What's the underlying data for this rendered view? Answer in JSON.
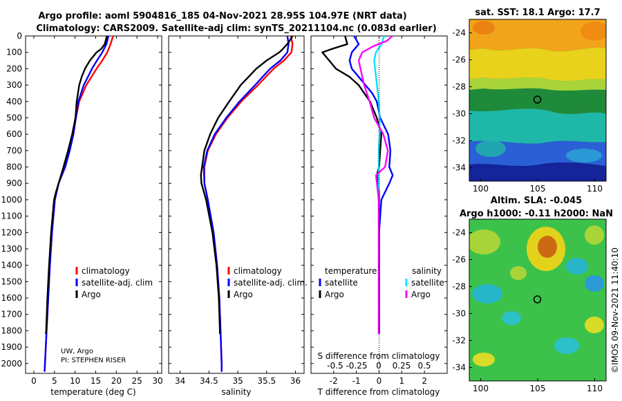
{
  "title_line1": "Argo profile: aoml 5904816_185 04-Nov-2021 28.95S 104.97E (NRT data)",
  "title_line2": "Climatology: CARS2009. Satellite-adj clim: synTS_20211104.nc (0.083d earlier)",
  "credit_line1": "UW, Argo",
  "credit_line2": "PI: STEPHEN RISER",
  "watermark": "©IMOS 09-Nov-2021 11:40:10",
  "colors": {
    "climatology": "#ff0000",
    "satellite": "#0000ff",
    "argo": "#000000",
    "argo_s": "#ff00ff",
    "sat_s": "#00e5ff"
  },
  "chart_data": [
    {
      "type": "line",
      "name": "temperature-profile",
      "xlabel": "temperature (deg C)",
      "ylabel": "",
      "xlim": [
        -2,
        31
      ],
      "ylim": [
        2060,
        0
      ],
      "xticks": [
        0,
        5,
        10,
        15,
        20,
        25,
        30
      ],
      "yticks": [
        0,
        100,
        200,
        300,
        400,
        500,
        600,
        700,
        800,
        900,
        1000,
        1100,
        1200,
        1300,
        1400,
        1500,
        1600,
        1700,
        1800,
        1900,
        2000
      ],
      "legend": [
        "climatology",
        "satellite-adj. clim",
        "Argo"
      ],
      "series": [
        {
          "name": "climatology",
          "depth": [
            0,
            50,
            100,
            150,
            200,
            300,
            400,
            500,
            600,
            700,
            800,
            900,
            1000,
            1200,
            1400,
            1600,
            1800,
            2000,
            2050
          ],
          "values": [
            19.2,
            18.6,
            17.8,
            16.6,
            15.2,
            12.7,
            11.0,
            10.2,
            9.6,
            8.7,
            7.6,
            6.0,
            5.1,
            4.4,
            3.9,
            3.5,
            3.1,
            2.7,
            2.6
          ]
        },
        {
          "name": "satellite-adj. clim",
          "depth": [
            0,
            50,
            100,
            150,
            200,
            300,
            400,
            500,
            600,
            700,
            800,
            900,
            1000,
            1200,
            1400,
            1600,
            1800,
            2000,
            2050
          ],
          "values": [
            18.1,
            17.6,
            16.6,
            15.3,
            14.1,
            12.1,
            10.8,
            10.2,
            9.6,
            8.7,
            7.6,
            6.0,
            5.1,
            4.4,
            3.9,
            3.5,
            3.1,
            2.7,
            2.6
          ]
        },
        {
          "name": "Argo",
          "depth": [
            0,
            50,
            80,
            100,
            150,
            200,
            250,
            300,
            400,
            500,
            600,
            700,
            800,
            900,
            950,
            1000,
            1200,
            1400,
            1600,
            1800,
            1820
          ],
          "values": [
            17.7,
            17.2,
            16.3,
            15.2,
            13.6,
            12.4,
            11.6,
            11.0,
            10.4,
            10.1,
            9.3,
            8.3,
            7.2,
            6.0,
            5.4,
            4.9,
            4.2,
            3.7,
            3.3,
            3.0,
            2.9
          ]
        }
      ]
    },
    {
      "type": "line",
      "name": "salinity-profile",
      "xlabel": "salinity",
      "ylabel": "",
      "xlim": [
        33.8,
        36.15
      ],
      "ylim": [
        2060,
        0
      ],
      "xticks": [
        34,
        34.5,
        35,
        35.5,
        36
      ],
      "legend": [
        "climatology",
        "satellite-adj. clim.",
        "Argo"
      ],
      "series": [
        {
          "name": "climatology",
          "depth": [
            0,
            50,
            100,
            150,
            200,
            300,
            400,
            500,
            600,
            700,
            800,
            900,
            1000,
            1200,
            1400,
            1600,
            1800,
            2000,
            2050
          ],
          "values": [
            35.92,
            35.95,
            35.93,
            35.8,
            35.62,
            35.35,
            35.06,
            34.82,
            34.62,
            34.48,
            34.42,
            34.42,
            34.48,
            34.58,
            34.64,
            34.68,
            34.7,
            34.72,
            34.72
          ]
        },
        {
          "name": "satellite-adj. clim.",
          "depth": [
            0,
            50,
            100,
            150,
            200,
            300,
            400,
            500,
            600,
            700,
            800,
            900,
            1000,
            1200,
            1400,
            1600,
            1800,
            2000,
            2050
          ],
          "values": [
            35.86,
            35.88,
            35.86,
            35.74,
            35.56,
            35.3,
            35.03,
            34.8,
            34.6,
            34.47,
            34.41,
            34.42,
            34.48,
            34.58,
            34.64,
            34.68,
            34.7,
            34.72,
            34.72
          ]
        },
        {
          "name": "Argo",
          "depth": [
            0,
            40,
            80,
            100,
            150,
            200,
            300,
            400,
            500,
            600,
            700,
            800,
            850,
            900,
            1000,
            1200,
            1400,
            1600,
            1800,
            1820
          ],
          "values": [
            35.95,
            35.88,
            35.78,
            35.72,
            35.5,
            35.32,
            35.05,
            34.85,
            34.66,
            34.52,
            34.42,
            34.38,
            34.36,
            34.37,
            34.45,
            34.56,
            34.63,
            34.67,
            34.69,
            34.69
          ]
        }
      ]
    },
    {
      "type": "line",
      "name": "difference-profile",
      "xlabel": "T difference from climatology",
      "xlabel_top": "S difference from climatology",
      "xlim": [
        -3,
        3
      ],
      "ylim": [
        2060,
        0
      ],
      "xticks": [
        -2,
        -1,
        0,
        1,
        2
      ],
      "xticks_top": [
        "-0.5",
        "-0.25",
        "0",
        "0.25",
        "0.5"
      ],
      "legend_t_title": "temperature",
      "legend_s_title": "salinity",
      "legend": [
        "satellite",
        "Argo",
        "satellite",
        "Argo"
      ],
      "series": [
        {
          "name": "T satellite",
          "depth": [
            0,
            50,
            100,
            150,
            200,
            250,
            300,
            350,
            400,
            500,
            600,
            700,
            800,
            850,
            900,
            1000,
            1200,
            1400,
            1600,
            1800,
            1820
          ],
          "values": [
            -1.1,
            -0.9,
            -1.2,
            -1.3,
            -1.2,
            -0.9,
            -0.6,
            -0.3,
            -0.1,
            0.05,
            0.4,
            0.5,
            0.45,
            0.6,
            0.45,
            0.1,
            0.0,
            0.0,
            0.0,
            0.0,
            0.0
          ]
        },
        {
          "name": "T Argo",
          "depth": [
            0,
            50,
            80,
            100,
            150,
            200,
            250,
            300,
            400,
            500,
            600,
            700,
            800,
            850,
            900,
            950,
            1000,
            1200,
            1400,
            1600,
            1800,
            1820
          ],
          "values": [
            -1.5,
            -1.4,
            -2.1,
            -2.5,
            -2.2,
            -1.9,
            -1.3,
            -0.9,
            -0.4,
            -0.1,
            0.1,
            0.05,
            0.0,
            -0.1,
            -0.05,
            0.0,
            0.0,
            0.0,
            0.0,
            0.0,
            0.0,
            0.0
          ]
        },
        {
          "name": "S satellite",
          "depth": [
            0,
            50,
            100,
            150,
            200,
            300,
            400,
            500,
            600,
            700,
            800,
            900,
            1000,
            1200,
            1400,
            1600,
            1800,
            1820
          ],
          "values": [
            0.06,
            0.03,
            -0.03,
            -0.05,
            -0.04,
            -0.02,
            0.0,
            0.01,
            0.01,
            0.0,
            0.0,
            0.0,
            0.0,
            0.0,
            0.0,
            0.0,
            0.0,
            0.0
          ]
        },
        {
          "name": "S Argo",
          "depth": [
            0,
            30,
            60,
            100,
            150,
            200,
            300,
            400,
            500,
            600,
            700,
            800,
            850,
            900,
            1000,
            1200,
            1400,
            1600,
            1800,
            1820
          ],
          "values": [
            0.15,
            0.09,
            -0.05,
            -0.18,
            -0.22,
            -0.2,
            -0.16,
            -0.1,
            -0.05,
            0.05,
            0.1,
            0.07,
            -0.03,
            -0.02,
            0.0,
            0.0,
            0.0,
            0.0,
            0.0,
            0.0
          ]
        }
      ]
    },
    {
      "type": "heatmap",
      "name": "sst-map",
      "title": "sat. SST: 18.1 Argo: 17.7",
      "xlim": [
        99,
        111
      ],
      "ylim": [
        -35,
        -23
      ],
      "xticks": [
        100,
        105,
        110
      ],
      "yticks": [
        -24,
        -26,
        -28,
        -30,
        -32,
        -34
      ],
      "float_position": {
        "lon": 104.97,
        "lat": -28.95
      }
    },
    {
      "type": "heatmap",
      "name": "sla-map",
      "title_line1": "Altim. SLA: -0.045",
      "title_line2": "Argo h1000: -0.11 h2000: NaN",
      "xlim": [
        99,
        111
      ],
      "ylim": [
        -35,
        -23
      ],
      "xticks": [
        100,
        105,
        110
      ],
      "yticks": [
        -24,
        -26,
        -28,
        -30,
        -32,
        -34
      ],
      "float_position": {
        "lon": 104.97,
        "lat": -28.95
      }
    }
  ]
}
